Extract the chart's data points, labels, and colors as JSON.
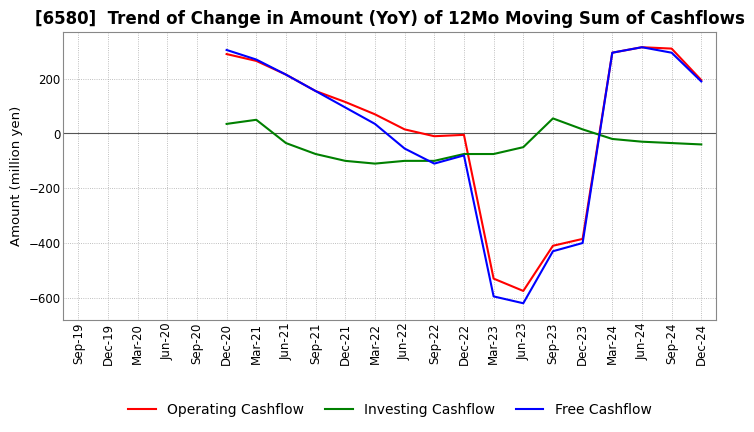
{
  "title": "[6580]  Trend of Change in Amount (YoY) of 12Mo Moving Sum of Cashflows",
  "ylabel": "Amount (million yen)",
  "x_labels": [
    "Sep-19",
    "Dec-19",
    "Mar-20",
    "Jun-20",
    "Sep-20",
    "Dec-20",
    "Mar-21",
    "Jun-21",
    "Sep-21",
    "Dec-21",
    "Mar-22",
    "Jun-22",
    "Sep-22",
    "Dec-22",
    "Mar-23",
    "Jun-23",
    "Sep-23",
    "Dec-23",
    "Mar-24",
    "Jun-24",
    "Sep-24",
    "Dec-24"
  ],
  "operating": [
    null,
    null,
    null,
    null,
    null,
    290,
    265,
    215,
    155,
    115,
    70,
    15,
    -10,
    -5,
    -530,
    -575,
    -410,
    -385,
    295,
    315,
    310,
    195
  ],
  "investing": [
    null,
    null,
    null,
    null,
    null,
    35,
    50,
    -35,
    -75,
    -100,
    -110,
    -100,
    -100,
    -75,
    -75,
    -50,
    55,
    15,
    -20,
    -30,
    -35,
    -40
  ],
  "free": [
    null,
    null,
    null,
    null,
    null,
    305,
    270,
    215,
    155,
    95,
    35,
    -55,
    -110,
    -80,
    -595,
    -620,
    -430,
    -400,
    295,
    315,
    295,
    190
  ],
  "ylim": [
    -680,
    370
  ],
  "yticks": [
    -600,
    -400,
    -200,
    0,
    200
  ],
  "title_fontsize": 12,
  "legend_fontsize": 10,
  "tick_fontsize": 8.5,
  "operating_color": "#ff0000",
  "investing_color": "#008000",
  "free_color": "#0000ff",
  "background_color": "#ffffff",
  "grid_color": "#aaaaaa",
  "zero_line_color": "#555555"
}
